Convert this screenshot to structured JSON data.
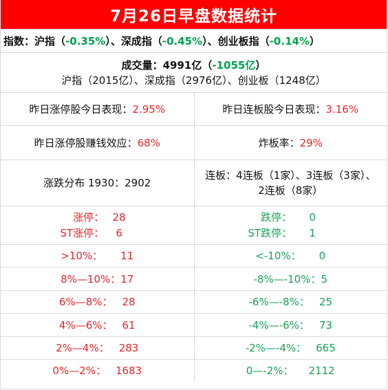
{
  "title": "7月26日早盘数据统计",
  "index_row": {
    "label": "指数：",
    "items": [
      {
        "name": "沪指",
        "value": "-0.35%"
      },
      {
        "name": "深成指",
        "value": "-0.45%"
      },
      {
        "name": "创业板指",
        "value": "-0.14%"
      }
    ],
    "sep": "、",
    "open": "（",
    "close": "）"
  },
  "volume": {
    "label": "成交量：",
    "value": "4991亿",
    "change": "-1055亿",
    "open": "（",
    "close": "）",
    "breakdown": "沪指（2015亿）、深成指（2976亿）、创业板（1248亿）"
  },
  "stats": [
    {
      "left": {
        "label": "昨日涨停股今日表现：",
        "value": "2.95%"
      },
      "right": {
        "label": "昨日连板股今日表现：",
        "value": "3.16%"
      }
    },
    {
      "left": {
        "label": "昨日涨停股赚钱效应：",
        "value": "68%"
      },
      "right": {
        "label": "炸板率：",
        "value": "29%"
      }
    }
  ],
  "distribution": {
    "label": "涨跌分布 1930：2902",
    "lianban_line1": "连板：4连板（1家）、3连板（3家）、",
    "lianban_line2": "2连板（8家）"
  },
  "limits": {
    "up": {
      "label": "涨停：",
      "value": "28"
    },
    "st_up": {
      "label": "ST涨停：",
      "value": "6"
    },
    "down": {
      "label": "跌停：",
      "value": "0"
    },
    "st_down": {
      "label": "ST跌停：",
      "value": "1"
    }
  },
  "ranges": [
    {
      "up_label": ">10%：",
      "up_value": "11",
      "down_label": "<-10%：",
      "down_value": "0"
    },
    {
      "up_label": "8%—10%：",
      "up_value": "17",
      "down_label": "-8%—-10%：",
      "down_value": "5"
    },
    {
      "up_label": "6%—8%：",
      "up_value": "28",
      "down_label": "-6%—-8%：",
      "down_value": "25"
    },
    {
      "up_label": "4%—6%：",
      "up_value": "61",
      "down_label": "-4%—-6%：",
      "down_value": "73"
    },
    {
      "up_label": "2%—4%：",
      "up_value": "283",
      "down_label": "-2%—-4%：",
      "down_value": "665"
    },
    {
      "up_label": "0%—2%：",
      "up_value": "1683",
      "down_label": "0—-2%：",
      "down_value": "2112"
    }
  ],
  "colors": {
    "title_bg": "#ff0000",
    "up": "#e0262b",
    "down": "#18a058",
    "border": "#d9d9d9"
  }
}
